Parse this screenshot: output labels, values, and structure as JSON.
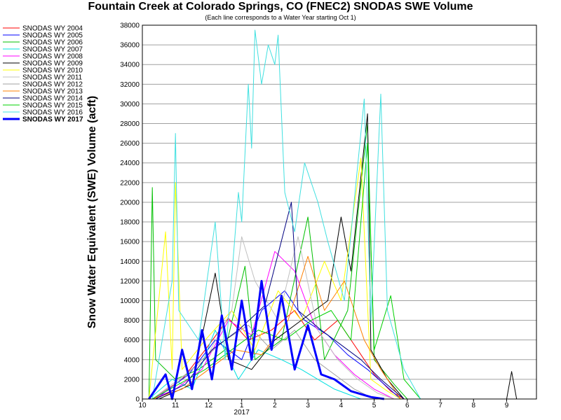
{
  "chart_data": {
    "type": "line",
    "title": "Fountain Creek at Colorado Springs, CO (FNEC2) SNODAS SWE Volume",
    "subtitle": "(Each line corresponds to a Water Year starting Oct 1)",
    "ylabel": "Snow Water Equivalent (SWE) Volume (acft)",
    "xlabel": "",
    "ylim": [
      0,
      38000
    ],
    "y_ticks": [
      0,
      2000,
      4000,
      6000,
      8000,
      10000,
      12000,
      14000,
      16000,
      18000,
      20000,
      22000,
      24000,
      26000,
      28000,
      30000,
      32000,
      34000,
      36000,
      38000
    ],
    "x_ticks": [
      {
        "label": "10",
        "month": 0
      },
      {
        "label": "11",
        "month": 1
      },
      {
        "label": "12",
        "month": 2
      },
      {
        "label": "1",
        "month": 3
      },
      {
        "label": "2",
        "month": 4
      },
      {
        "label": "3",
        "month": 5
      },
      {
        "label": "4",
        "month": 6
      },
      {
        "label": "5",
        "month": 7
      },
      {
        "label": "6",
        "month": 8
      },
      {
        "label": "7",
        "month": 9
      },
      {
        "label": "8",
        "month": 10
      },
      {
        "label": "9",
        "month": 11
      }
    ],
    "x_year_label": {
      "label": "2017",
      "month": 3
    },
    "grid": "horizontal",
    "legend_position": "left",
    "series": [
      {
        "name": "SNODAS WY 2004",
        "color": "#ff0000",
        "values": [
          [
            0.3,
            0
          ],
          [
            1.2,
            2000
          ],
          [
            1.9,
            5000
          ],
          [
            2.6,
            8200
          ],
          [
            3.2,
            6000
          ],
          [
            3.9,
            7000
          ],
          [
            4.6,
            9000
          ],
          [
            5.2,
            6000
          ],
          [
            5.9,
            8000
          ],
          [
            6.5,
            5000
          ],
          [
            7.0,
            2500
          ],
          [
            7.5,
            800
          ],
          [
            7.9,
            0
          ]
        ]
      },
      {
        "name": "SNODAS WY 2005",
        "color": "#0000ff",
        "values": [
          [
            0.4,
            0
          ],
          [
            1.4,
            2500
          ],
          [
            2.2,
            6000
          ],
          [
            3.0,
            4000
          ],
          [
            3.6,
            9000
          ],
          [
            4.3,
            11000
          ],
          [
            4.9,
            8000
          ],
          [
            5.6,
            6500
          ],
          [
            6.2,
            4500
          ],
          [
            6.8,
            3000
          ],
          [
            7.4,
            1200
          ],
          [
            7.8,
            0
          ]
        ]
      },
      {
        "name": "SNODAS WY 2006",
        "color": "#00c000",
        "values": [
          [
            0.2,
            0
          ],
          [
            0.3,
            21500
          ],
          [
            0.4,
            4000
          ],
          [
            1.0,
            2000
          ],
          [
            1.7,
            3000
          ],
          [
            2.5,
            5000
          ],
          [
            3.1,
            13500
          ],
          [
            3.4,
            4000
          ],
          [
            4.2,
            6000
          ],
          [
            5.0,
            18500
          ],
          [
            5.5,
            4000
          ],
          [
            6.2,
            9000
          ],
          [
            6.8,
            28000
          ],
          [
            7.0,
            4000
          ],
          [
            7.6,
            1500
          ],
          [
            8.0,
            0
          ]
        ]
      },
      {
        "name": "SNODAS WY 2007",
        "color": "#00e0e0",
        "values": [
          [
            0.2,
            0
          ],
          [
            0.9,
            2000
          ],
          [
            1.5,
            1000
          ],
          [
            2.2,
            7000
          ],
          [
            2.9,
            2000
          ],
          [
            3.5,
            5000
          ],
          [
            4.2,
            4000
          ],
          [
            4.8,
            3000
          ],
          [
            5.3,
            2000
          ],
          [
            5.8,
            1000
          ],
          [
            6.2,
            500
          ],
          [
            6.6,
            0
          ]
        ]
      },
      {
        "name": "SNODAS WY 2008",
        "color": "#ff00ff",
        "values": [
          [
            0.3,
            0
          ],
          [
            1.0,
            1000
          ],
          [
            1.8,
            3000
          ],
          [
            2.6,
            8000
          ],
          [
            3.3,
            6500
          ],
          [
            4.0,
            15000
          ],
          [
            4.6,
            13000
          ],
          [
            5.2,
            7500
          ],
          [
            5.8,
            4500
          ],
          [
            6.4,
            2500
          ],
          [
            7.0,
            1000
          ],
          [
            7.6,
            0
          ]
        ]
      },
      {
        "name": "SNODAS WY 2009",
        "color": "#000000",
        "values": [
          [
            0.5,
            0
          ],
          [
            1.5,
            1500
          ],
          [
            2.2,
            12800
          ],
          [
            2.6,
            4000
          ],
          [
            3.3,
            3000
          ],
          [
            4.0,
            6000
          ],
          [
            4.8,
            8000
          ],
          [
            5.6,
            10000
          ],
          [
            6.0,
            18500
          ],
          [
            6.3,
            13000
          ],
          [
            6.8,
            29000
          ],
          [
            6.9,
            5000
          ],
          [
            7.4,
            2000
          ],
          [
            7.9,
            0
          ],
          [
            11.0,
            0
          ],
          [
            11.15,
            2800
          ],
          [
            11.3,
            0
          ]
        ]
      },
      {
        "name": "SNODAS WY 2010",
        "color": "#ffff00",
        "values": [
          [
            0.2,
            0
          ],
          [
            0.7,
            17000
          ],
          [
            0.9,
            3000
          ],
          [
            1.0,
            22000
          ],
          [
            1.2,
            3000
          ],
          [
            1.9,
            6000
          ],
          [
            2.7,
            9000
          ],
          [
            3.4,
            5000
          ],
          [
            4.1,
            11000
          ],
          [
            4.8,
            8000
          ],
          [
            5.5,
            14000
          ],
          [
            6.0,
            10000
          ],
          [
            6.6,
            24500
          ],
          [
            6.9,
            2000
          ],
          [
            7.4,
            800
          ],
          [
            7.8,
            0
          ]
        ]
      },
      {
        "name": "SNODAS WY 2011",
        "color": "#c0c0c0",
        "values": [
          [
            0.3,
            0
          ],
          [
            1.1,
            2000
          ],
          [
            1.9,
            4000
          ],
          [
            2.7,
            9000
          ],
          [
            3.0,
            16500
          ],
          [
            3.4,
            12000
          ],
          [
            4.1,
            8000
          ],
          [
            4.7,
            16500
          ],
          [
            5.3,
            7000
          ],
          [
            5.9,
            4000
          ],
          [
            6.5,
            2000
          ],
          [
            7.1,
            600
          ],
          [
            7.6,
            0
          ]
        ]
      },
      {
        "name": "SNODAS WY 2012",
        "color": "#a0a0a0",
        "values": [
          [
            0.3,
            0
          ],
          [
            1.0,
            1500
          ],
          [
            1.8,
            4000
          ],
          [
            2.5,
            6000
          ],
          [
            3.2,
            7500
          ],
          [
            3.9,
            5000
          ],
          [
            4.6,
            7000
          ],
          [
            5.2,
            4000
          ],
          [
            5.8,
            2500
          ],
          [
            6.4,
            1000
          ],
          [
            7.0,
            0
          ]
        ]
      },
      {
        "name": "SNODAS WY 2013",
        "color": "#ff8000",
        "values": [
          [
            0.3,
            0
          ],
          [
            1.2,
            1000
          ],
          [
            2.0,
            3000
          ],
          [
            2.8,
            5000
          ],
          [
            3.6,
            4500
          ],
          [
            4.4,
            8000
          ],
          [
            5.0,
            14500
          ],
          [
            5.5,
            9000
          ],
          [
            6.1,
            12000
          ],
          [
            6.7,
            6000
          ],
          [
            7.2,
            3000
          ],
          [
            7.8,
            0
          ]
        ]
      },
      {
        "name": "SNODAS WY 2014",
        "color": "#000080",
        "values": [
          [
            0.4,
            0
          ],
          [
            1.3,
            1500
          ],
          [
            2.1,
            5000
          ],
          [
            2.9,
            7000
          ],
          [
            3.7,
            9500
          ],
          [
            4.5,
            20000
          ],
          [
            4.7,
            9000
          ],
          [
            5.4,
            7000
          ],
          [
            6.0,
            5500
          ],
          [
            6.6,
            4000
          ],
          [
            7.2,
            2000
          ],
          [
            7.9,
            0
          ]
        ]
      },
      {
        "name": "SNODAS WY 2015",
        "color": "#00d000",
        "values": [
          [
            0.3,
            0
          ],
          [
            1.1,
            1500
          ],
          [
            1.9,
            3000
          ],
          [
            2.7,
            5000
          ],
          [
            3.5,
            7000
          ],
          [
            4.3,
            6000
          ],
          [
            5.1,
            8000
          ],
          [
            5.7,
            9000
          ],
          [
            6.3,
            6000
          ],
          [
            6.8,
            26000
          ],
          [
            7.0,
            5000
          ],
          [
            7.5,
            10500
          ],
          [
            7.9,
            2000
          ],
          [
            8.4,
            0
          ]
        ]
      },
      {
        "name": "SNODAS WY 2016",
        "color": "#40e0e0",
        "values": [
          [
            0.3,
            0
          ],
          [
            0.9,
            12000
          ],
          [
            1.0,
            27000
          ],
          [
            1.1,
            9000
          ],
          [
            1.7,
            6000
          ],
          [
            2.2,
            18000
          ],
          [
            2.5,
            4000
          ],
          [
            2.9,
            21000
          ],
          [
            3.0,
            18000
          ],
          [
            3.2,
            32000
          ],
          [
            3.3,
            25500
          ],
          [
            3.4,
            37500
          ],
          [
            3.6,
            32000
          ],
          [
            3.8,
            36000
          ],
          [
            4.0,
            34000
          ],
          [
            4.1,
            37000
          ],
          [
            4.3,
            21000
          ],
          [
            4.6,
            17000
          ],
          [
            4.9,
            24000
          ],
          [
            5.3,
            20000
          ],
          [
            5.6,
            16000
          ],
          [
            6.1,
            10000
          ],
          [
            6.7,
            30500
          ],
          [
            6.9,
            8000
          ],
          [
            7.2,
            31000
          ],
          [
            7.4,
            9000
          ],
          [
            7.9,
            3000
          ],
          [
            8.4,
            0
          ]
        ]
      },
      {
        "name": "SNODAS WY 2017",
        "color": "#0000ff",
        "thick": true,
        "values": [
          [
            0.2,
            0
          ],
          [
            0.7,
            2500
          ],
          [
            0.9,
            0
          ],
          [
            1.2,
            5000
          ],
          [
            1.5,
            1000
          ],
          [
            1.8,
            7000
          ],
          [
            2.1,
            2000
          ],
          [
            2.4,
            8500
          ],
          [
            2.7,
            3000
          ],
          [
            3.0,
            10000
          ],
          [
            3.3,
            4000
          ],
          [
            3.6,
            12000
          ],
          [
            3.9,
            5000
          ],
          [
            4.2,
            10500
          ],
          [
            4.6,
            3000
          ],
          [
            5.0,
            7500
          ],
          [
            5.4,
            2500
          ],
          [
            5.8,
            2000
          ],
          [
            6.3,
            800
          ],
          [
            6.9,
            200
          ],
          [
            7.3,
            0
          ]
        ]
      }
    ]
  }
}
